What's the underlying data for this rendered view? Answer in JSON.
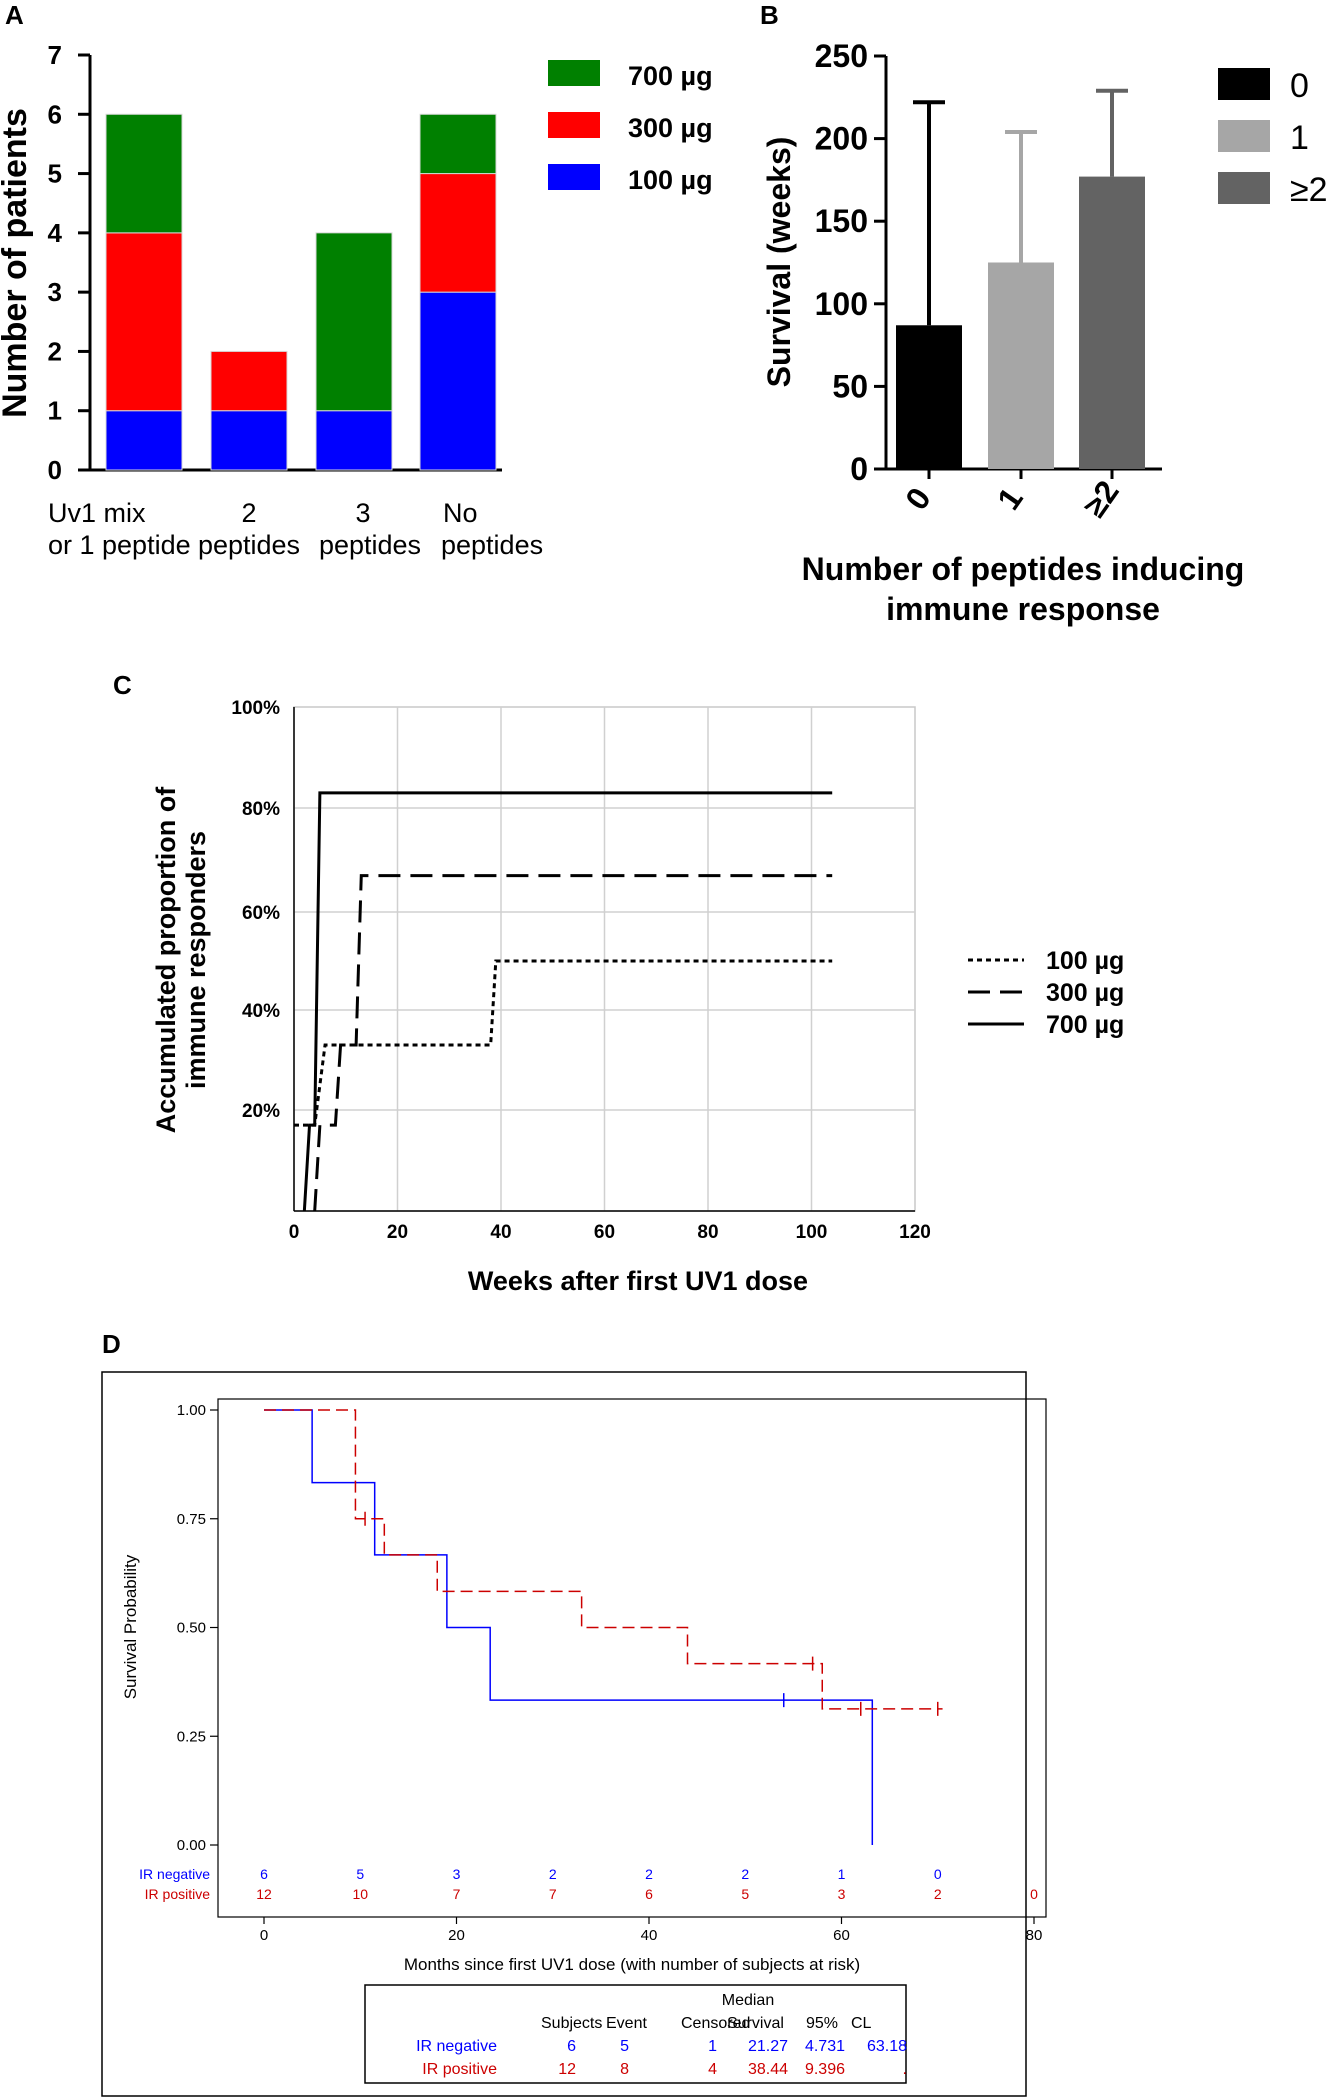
{
  "chart_data": [
    {
      "id": "A",
      "panel": "A",
      "type": "bar",
      "stacked": true,
      "ylabel": "Number of patients",
      "ylim": [
        0,
        7
      ],
      "yticks": [
        "0",
        "1",
        "2",
        "3",
        "4",
        "5",
        "6",
        "7"
      ],
      "categories": [
        [
          "Uv1 mix",
          "or 1 peptide"
        ],
        [
          "2",
          "peptides"
        ],
        [
          "3",
          "peptides"
        ],
        [
          "No",
          "peptides"
        ]
      ],
      "series": [
        {
          "name": "100 µg",
          "color": "#0000ff",
          "values": [
            1,
            1,
            1,
            3
          ]
        },
        {
          "name": "300 µg",
          "color": "#ff0000",
          "values": [
            3,
            1,
            0,
            2
          ]
        },
        {
          "name": "700 µg",
          "color": "#008000",
          "values": [
            2,
            0,
            3,
            1
          ]
        }
      ],
      "legend_order": [
        "700 µg",
        "300 µg",
        "100 µg"
      ],
      "legend_position": "right"
    },
    {
      "id": "B",
      "panel": "B",
      "type": "bar",
      "ylabel": "Survival (weeks)",
      "xlabel_lines": [
        "Number of peptides inducing",
        "immune response"
      ],
      "ylim": [
        0,
        250
      ],
      "yticks": [
        "0",
        "50",
        "100",
        "150",
        "200",
        "250"
      ],
      "categories": [
        "0",
        "1",
        "≥2"
      ],
      "values": [
        87,
        125,
        177
      ],
      "error_upper": [
        222,
        204,
        229
      ],
      "colors": [
        "#000000",
        "#a6a6a6",
        "#636363"
      ],
      "legend": [
        "0",
        "1",
        "≥2"
      ],
      "legend_position": "right"
    },
    {
      "id": "C",
      "panel": "C",
      "type": "line",
      "step": true,
      "xlabel": "Weeks after first UV1 dose",
      "ylabel_lines": [
        "Accumulated proportion of",
        "immune responders"
      ],
      "xlim": [
        0,
        120
      ],
      "ylim": [
        0,
        100
      ],
      "xticks": [
        "0",
        "20",
        "40",
        "60",
        "80",
        "100",
        "120"
      ],
      "yticks": [
        {
          "label": "20%",
          "value": 20
        },
        {
          "label": "40%",
          "value": 40
        },
        {
          "label": "60%",
          "value": 60
        },
        {
          "label": "80%",
          "value": 80
        },
        {
          "label": "100%",
          "value": 100
        }
      ],
      "series": [
        {
          "name": "100 µg",
          "style": "dotted",
          "points": [
            [
              0,
              17
            ],
            [
              4,
              17
            ],
            [
              6,
              33
            ],
            [
              38,
              33
            ],
            [
              39,
              50
            ],
            [
              104,
              50
            ]
          ]
        },
        {
          "name": "300 µg",
          "style": "dashed",
          "points": [
            [
              4,
              0
            ],
            [
              5,
              17
            ],
            [
              8,
              17
            ],
            [
              9,
              33
            ],
            [
              12,
              33
            ],
            [
              13,
              67
            ],
            [
              104,
              67
            ]
          ]
        },
        {
          "name": "700 µg",
          "style": "solid",
          "points": [
            [
              2,
              0
            ],
            [
              3,
              17
            ],
            [
              4,
              17
            ],
            [
              5,
              83
            ],
            [
              104,
              83
            ]
          ]
        }
      ],
      "legend_position": "right"
    },
    {
      "id": "D",
      "panel": "D",
      "type": "line",
      "step": true,
      "xlabel": "Months since first UV1 dose (with number of subjects at risk)",
      "ylabel": "Survival Probability",
      "xlim": [
        0,
        80
      ],
      "ylim": [
        0,
        1
      ],
      "xticks": [
        "0",
        "20",
        "40",
        "60",
        "80"
      ],
      "yticks": [
        "0.00",
        "0.25",
        "0.50",
        "0.75",
        "1.00"
      ],
      "series": [
        {
          "name": "IR negative",
          "color": "#0000ff",
          "style": "solid",
          "points": [
            [
              0,
              1
            ],
            [
              5,
              1
            ],
            [
              5,
              0.833
            ],
            [
              11.5,
              0.833
            ],
            [
              11.5,
              0.667
            ],
            [
              19,
              0.667
            ],
            [
              19,
              0.5
            ],
            [
              23.5,
              0.5
            ],
            [
              23.5,
              0.333
            ],
            [
              63.2,
              0.333
            ],
            [
              63.2,
              0
            ]
          ],
          "censored": [
            [
              54,
              0.333
            ]
          ]
        },
        {
          "name": "IR positive",
          "color": "#cc0000",
          "style": "dashed",
          "points": [
            [
              0,
              1
            ],
            [
              9.5,
              1
            ],
            [
              9.5,
              0.75
            ],
            [
              12.5,
              0.75
            ],
            [
              12.5,
              0.667
            ],
            [
              18,
              0.667
            ],
            [
              18,
              0.583
            ],
            [
              33,
              0.583
            ],
            [
              33,
              0.5
            ],
            [
              44,
              0.5
            ],
            [
              44,
              0.417
            ],
            [
              58,
              0.417
            ],
            [
              58,
              0.313
            ],
            [
              70.5,
              0.313
            ]
          ],
          "censored": [
            [
              10.5,
              0.75
            ],
            [
              57,
              0.417
            ],
            [
              62,
              0.313
            ],
            [
              70,
              0.313
            ]
          ]
        }
      ],
      "at_risk": {
        "times": [
          0,
          10,
          20,
          30,
          40,
          50,
          60,
          70,
          80
        ],
        "rows": [
          {
            "label": "IR negative",
            "color": "#0000ff",
            "values": [
              "6",
              "5",
              "3",
              "2",
              "2",
              "2",
              "1",
              "0",
              ""
            ]
          },
          {
            "label": "IR positive",
            "color": "#cc0000",
            "values": [
              "12",
              "10",
              "7",
              "7",
              "6",
              "5",
              "3",
              "2",
              "0"
            ]
          }
        ]
      },
      "table": {
        "header_top": [
          "",
          "",
          "",
          "",
          "Median",
          "",
          ""
        ],
        "header": [
          "",
          "Subjects",
          "Event",
          "Censored",
          "Survival",
          "95%",
          "CL"
        ],
        "rows": [
          {
            "color": "#0000ff",
            "cells": [
              "IR negative",
              "6",
              "5",
              "1",
              "21.27",
              "4.731",
              "63.18"
            ]
          },
          {
            "color": "#cc0000",
            "cells": [
              "IR positive",
              "12",
              "8",
              "4",
              "38.44",
              "9.396",
              "."
            ]
          }
        ]
      }
    }
  ]
}
